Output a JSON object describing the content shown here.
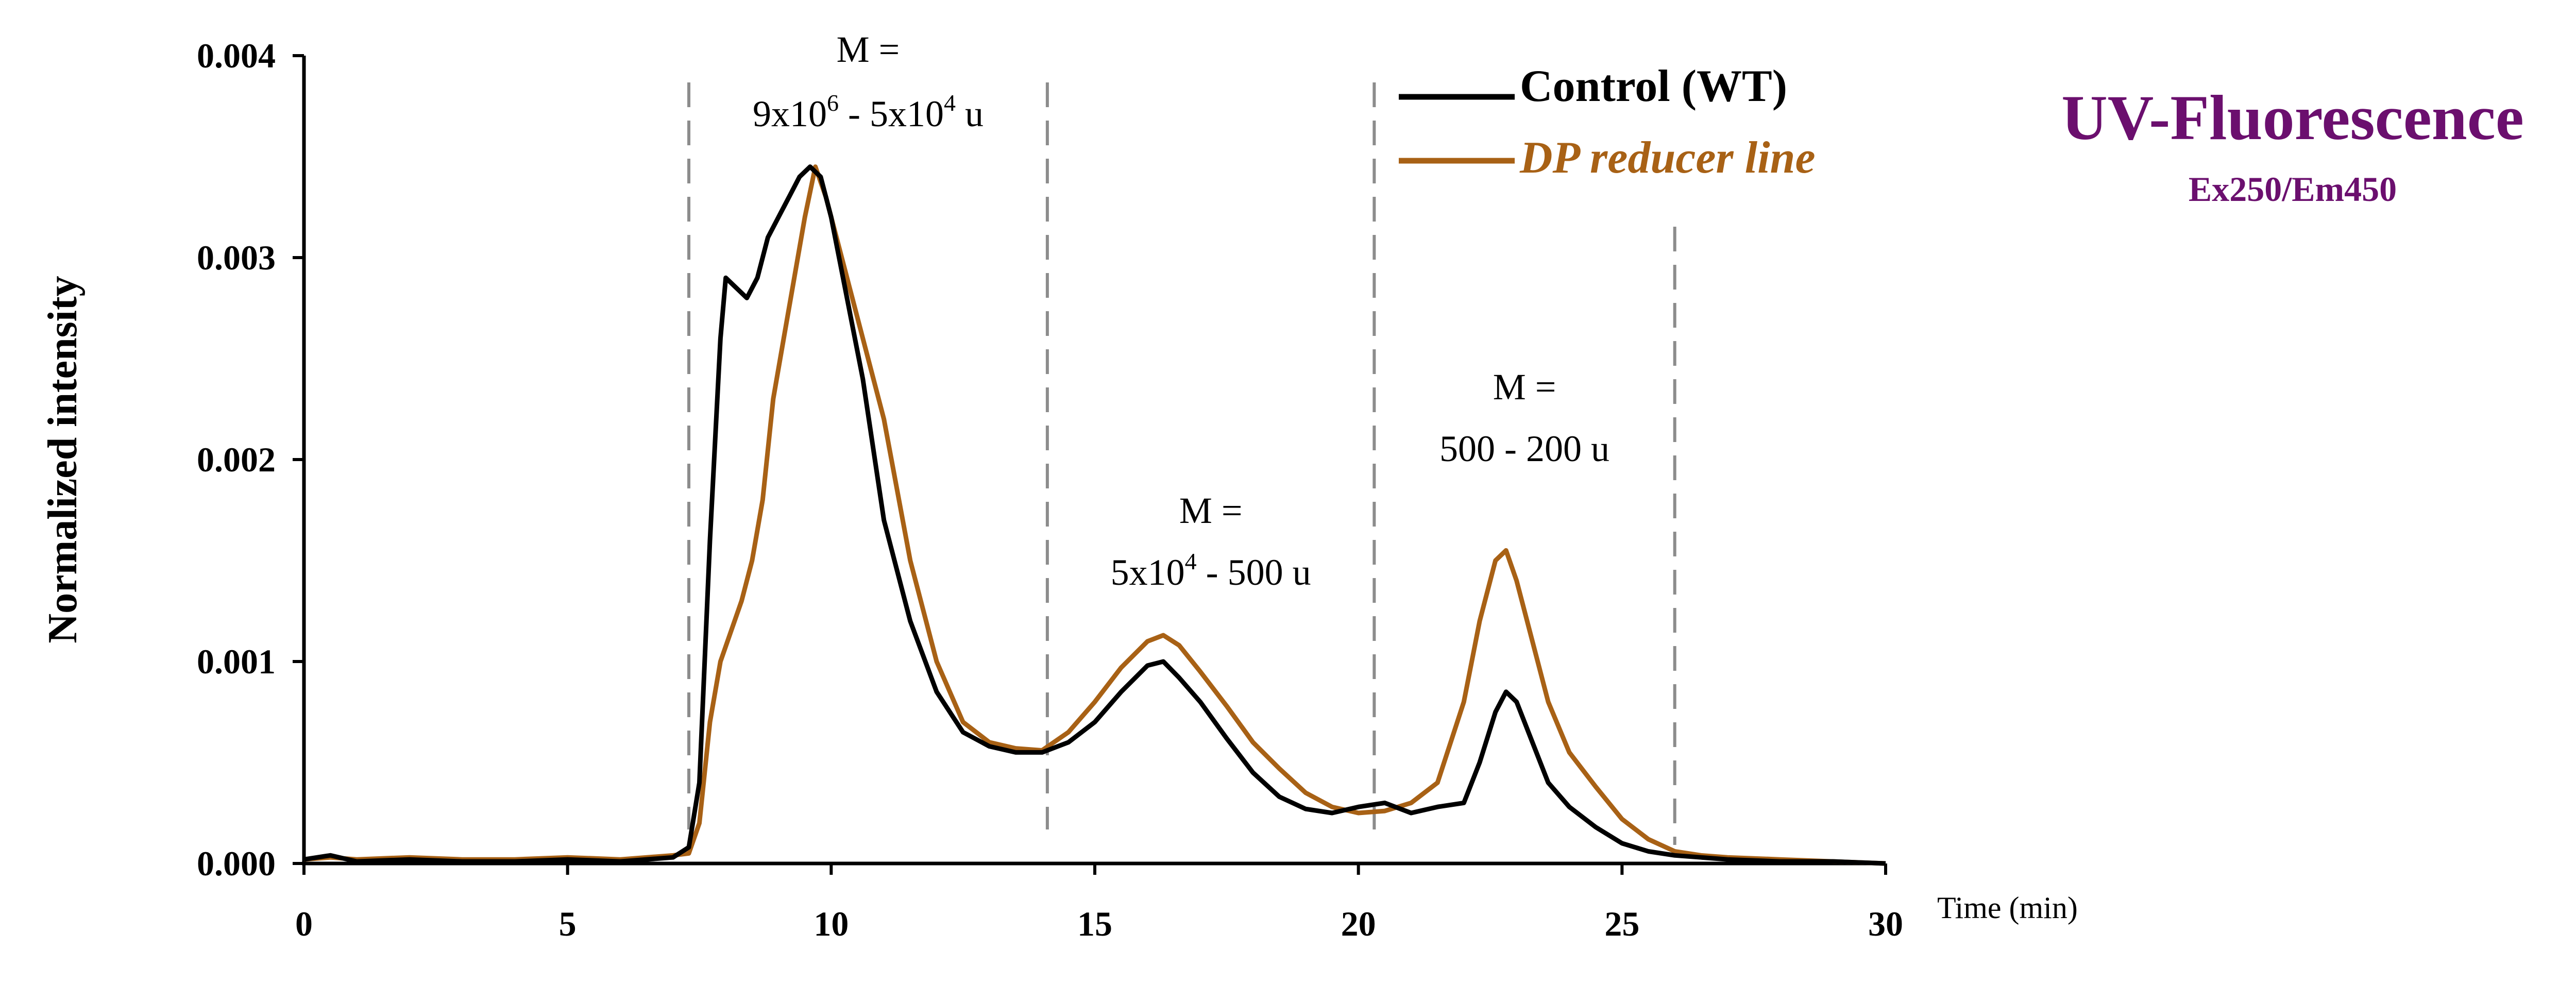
{
  "chart_data": {
    "type": "line",
    "xlabel": "Time (min)",
    "ylabel": "Normalized intensity",
    "xlim": [
      0,
      30
    ],
    "ylim": [
      0,
      0.004
    ],
    "x_ticks": [
      "0",
      "5",
      "10",
      "15",
      "20",
      "25",
      "30"
    ],
    "y_ticks": [
      "0.000",
      "0.001",
      "0.002",
      "0.003",
      "0.004"
    ],
    "grid": false,
    "legend_position": "top-center",
    "series": [
      {
        "name": "Control (WT)",
        "color": "#000000",
        "x": [
          0,
          0.5,
          1,
          2,
          3,
          4,
          5,
          6,
          7,
          7.3,
          7.5,
          7.7,
          7.9,
          8.0,
          8.2,
          8.4,
          8.6,
          8.8,
          9.0,
          9.2,
          9.4,
          9.6,
          9.8,
          10.0,
          10.3,
          10.6,
          11.0,
          11.5,
          12.0,
          12.5,
          13.0,
          13.5,
          14.0,
          14.5,
          15.0,
          15.5,
          16.0,
          16.3,
          16.6,
          17.0,
          17.5,
          18.0,
          18.5,
          19.0,
          19.5,
          20.0,
          20.5,
          21.0,
          21.5,
          22.0,
          22.3,
          22.6,
          22.8,
          23.0,
          23.3,
          23.6,
          24.0,
          24.5,
          25.0,
          25.5,
          26.0,
          26.5,
          27.0,
          28.0,
          29.0,
          30.0
        ],
        "values": [
          2e-05,
          4e-05,
          1e-05,
          2e-05,
          1e-05,
          1e-05,
          2e-05,
          1e-05,
          3e-05,
          8e-05,
          0.0004,
          0.0016,
          0.0026,
          0.0029,
          0.00285,
          0.0028,
          0.0029,
          0.0031,
          0.0032,
          0.0033,
          0.0034,
          0.00345,
          0.0034,
          0.0032,
          0.0028,
          0.0024,
          0.0017,
          0.0012,
          0.00085,
          0.00065,
          0.00058,
          0.00055,
          0.00055,
          0.0006,
          0.0007,
          0.00085,
          0.00098,
          0.001,
          0.00092,
          0.0008,
          0.00062,
          0.00045,
          0.00033,
          0.00027,
          0.00025,
          0.00028,
          0.0003,
          0.00025,
          0.00028,
          0.0003,
          0.0005,
          0.00075,
          0.00085,
          0.0008,
          0.0006,
          0.0004,
          0.00028,
          0.00018,
          0.0001,
          6e-05,
          4e-05,
          3e-05,
          2e-05,
          1e-05,
          1e-05,
          0.0
        ]
      },
      {
        "name": "DP reducer line",
        "color": "#a86115",
        "x": [
          0,
          0.5,
          1,
          2,
          3,
          4,
          5,
          6,
          7,
          7.3,
          7.5,
          7.7,
          7.9,
          8.1,
          8.3,
          8.5,
          8.7,
          8.9,
          9.1,
          9.3,
          9.5,
          9.7,
          9.9,
          10.1,
          10.4,
          10.7,
          11.0,
          11.5,
          12.0,
          12.5,
          13.0,
          13.5,
          14.0,
          14.5,
          15.0,
          15.5,
          16.0,
          16.3,
          16.6,
          17.0,
          17.5,
          18.0,
          18.5,
          19.0,
          19.5,
          20.0,
          20.5,
          21.0,
          21.5,
          22.0,
          22.3,
          22.6,
          22.8,
          23.0,
          23.3,
          23.6,
          24.0,
          24.5,
          25.0,
          25.5,
          26.0,
          26.5,
          27.0,
          28.0,
          29.0,
          30.0
        ],
        "values": [
          2e-05,
          3e-05,
          2e-05,
          3e-05,
          2e-05,
          2e-05,
          3e-05,
          2e-05,
          4e-05,
          5e-05,
          0.0002,
          0.0007,
          0.001,
          0.00115,
          0.0013,
          0.0015,
          0.0018,
          0.0023,
          0.0026,
          0.0029,
          0.0032,
          0.00345,
          0.0033,
          0.0031,
          0.0028,
          0.0025,
          0.0022,
          0.0015,
          0.001,
          0.0007,
          0.0006,
          0.00057,
          0.00056,
          0.00065,
          0.0008,
          0.00097,
          0.0011,
          0.00113,
          0.00108,
          0.00095,
          0.00078,
          0.0006,
          0.00047,
          0.00035,
          0.00028,
          0.00025,
          0.00026,
          0.0003,
          0.0004,
          0.0008,
          0.0012,
          0.0015,
          0.00155,
          0.0014,
          0.0011,
          0.0008,
          0.00055,
          0.00038,
          0.00022,
          0.00012,
          6e-05,
          4e-05,
          3e-05,
          2e-05,
          1e-05,
          0.0
        ]
      }
    ],
    "regions": [
      {
        "x_start": 7.3,
        "x_end": 14.1,
        "label_line1": "M =",
        "label_line2_parts": [
          "9x10",
          "6",
          " - 5x10",
          "4",
          " u"
        ]
      },
      {
        "x_start": 14.1,
        "x_end": 20.3,
        "label_line1": "M =",
        "label_line2_parts": [
          "5x10",
          "4",
          " - 500 u",
          "",
          ""
        ]
      },
      {
        "x_start": 20.3,
        "x_end": 26.0,
        "label_line1": "M =",
        "label_line2_parts": [
          "500  - 200 u",
          "",
          "",
          "",
          ""
        ]
      }
    ],
    "annotation": {
      "title": "UV-Fluorescence",
      "subtitle": "Ex250/Em450",
      "color": "#6b0f6e"
    }
  }
}
